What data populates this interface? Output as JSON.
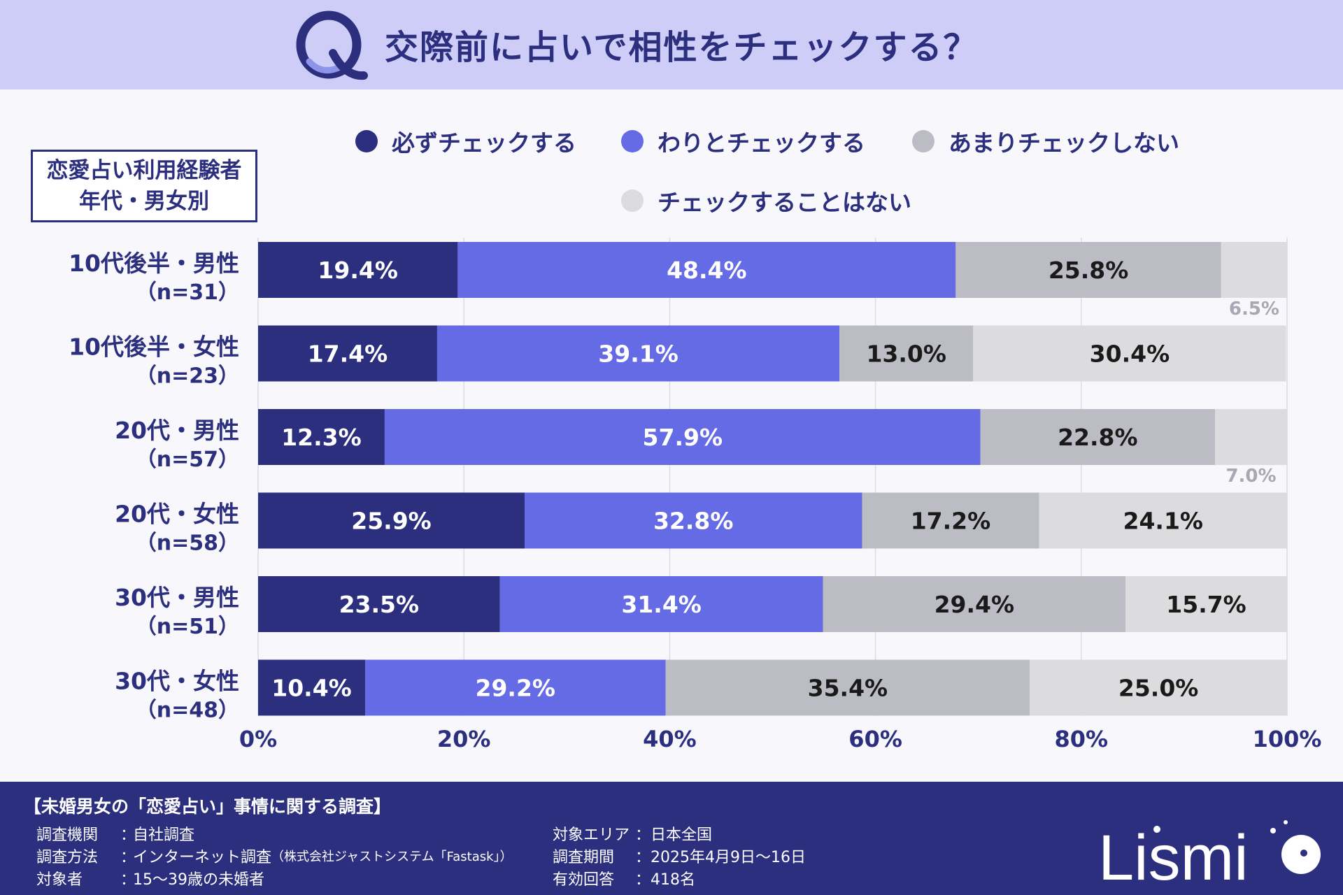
{
  "header": {
    "q_letter": "Q",
    "title": "交際前に占いで相性をチェックする？"
  },
  "category_box": {
    "line1": "恋愛占い利用経験者",
    "line2": "年代・男女別"
  },
  "legend": [
    {
      "label": "必ずチェックする",
      "color": "#2b2f7e"
    },
    {
      "label": "わりとチェックする",
      "color": "#646be4"
    },
    {
      "label": "あまりチェックしない",
      "color": "#bcbcc5"
    },
    {
      "label": "チェックすることはない",
      "color": "#dcdcdf"
    }
  ],
  "chart_data": {
    "type": "bar",
    "orientation": "horizontal",
    "stacked": true,
    "categories": [
      {
        "label": "10代後半・男性",
        "n": "（n=31）"
      },
      {
        "label": "10代後半・女性",
        "n": "（n=23）"
      },
      {
        "label": "20代・男性",
        "n": "（n=57）"
      },
      {
        "label": "20代・女性",
        "n": "（n=58）"
      },
      {
        "label": "30代・男性",
        "n": "（n=51）"
      },
      {
        "label": "30代・女性",
        "n": "（n=48）"
      }
    ],
    "series": [
      {
        "name": "必ずチェックする",
        "color": "#2b2f7e",
        "label_color": "#ffffff",
        "values": [
          19.4,
          17.4,
          12.3,
          25.9,
          23.5,
          10.4
        ]
      },
      {
        "name": "わりとチェックする",
        "color": "#646be4",
        "label_color": "#ffffff",
        "values": [
          48.4,
          39.1,
          57.9,
          32.8,
          31.4,
          29.2
        ]
      },
      {
        "name": "あまりチェックしない",
        "color": "#bcbcc5",
        "label_color": "#1a1a1a",
        "values": [
          25.8,
          13.0,
          22.8,
          17.2,
          29.4,
          35.4
        ]
      },
      {
        "name": "チェックすることはない",
        "color": "#dcdcdf",
        "label_color": "#1a1a1a",
        "values": [
          6.5,
          30.4,
          7.0,
          24.1,
          15.7,
          25.0
        ]
      }
    ],
    "data_labels": [
      [
        "19.4%",
        "48.4%",
        "25.8%",
        "6.5%"
      ],
      [
        "17.4%",
        "39.1%",
        "13.0%",
        "30.4%"
      ],
      [
        "12.3%",
        "57.9%",
        "22.8%",
        "7.0%"
      ],
      [
        "25.9%",
        "32.8%",
        "17.2%",
        "24.1%"
      ],
      [
        "23.5%",
        "31.4%",
        "29.4%",
        "15.7%"
      ],
      [
        "10.4%",
        "29.2%",
        "35.4%",
        "25.0%"
      ]
    ],
    "x_ticks": [
      "0%",
      "20%",
      "40%",
      "60%",
      "80%",
      "100%"
    ],
    "xlim": [
      0,
      100
    ],
    "grid": true
  },
  "footer": {
    "survey_title": "【未婚男女の「恋愛占い」事情に関する調査】",
    "left_rows": [
      {
        "label": "調査機関",
        "value": "自社調査"
      },
      {
        "label": "調査方法",
        "value": "インターネット調査",
        "note": "（株式会社ジャストシステム「Fastask」）"
      },
      {
        "label": "対象者",
        "value": "15～39歳の未婚者"
      }
    ],
    "right_rows": [
      {
        "label": "対象エリア",
        "value": "日本全国"
      },
      {
        "label": "調査期間",
        "value": "2025年4月9日～16日"
      },
      {
        "label": "有効回答",
        "value": "418名"
      }
    ],
    "logo_text": "Lismi"
  }
}
